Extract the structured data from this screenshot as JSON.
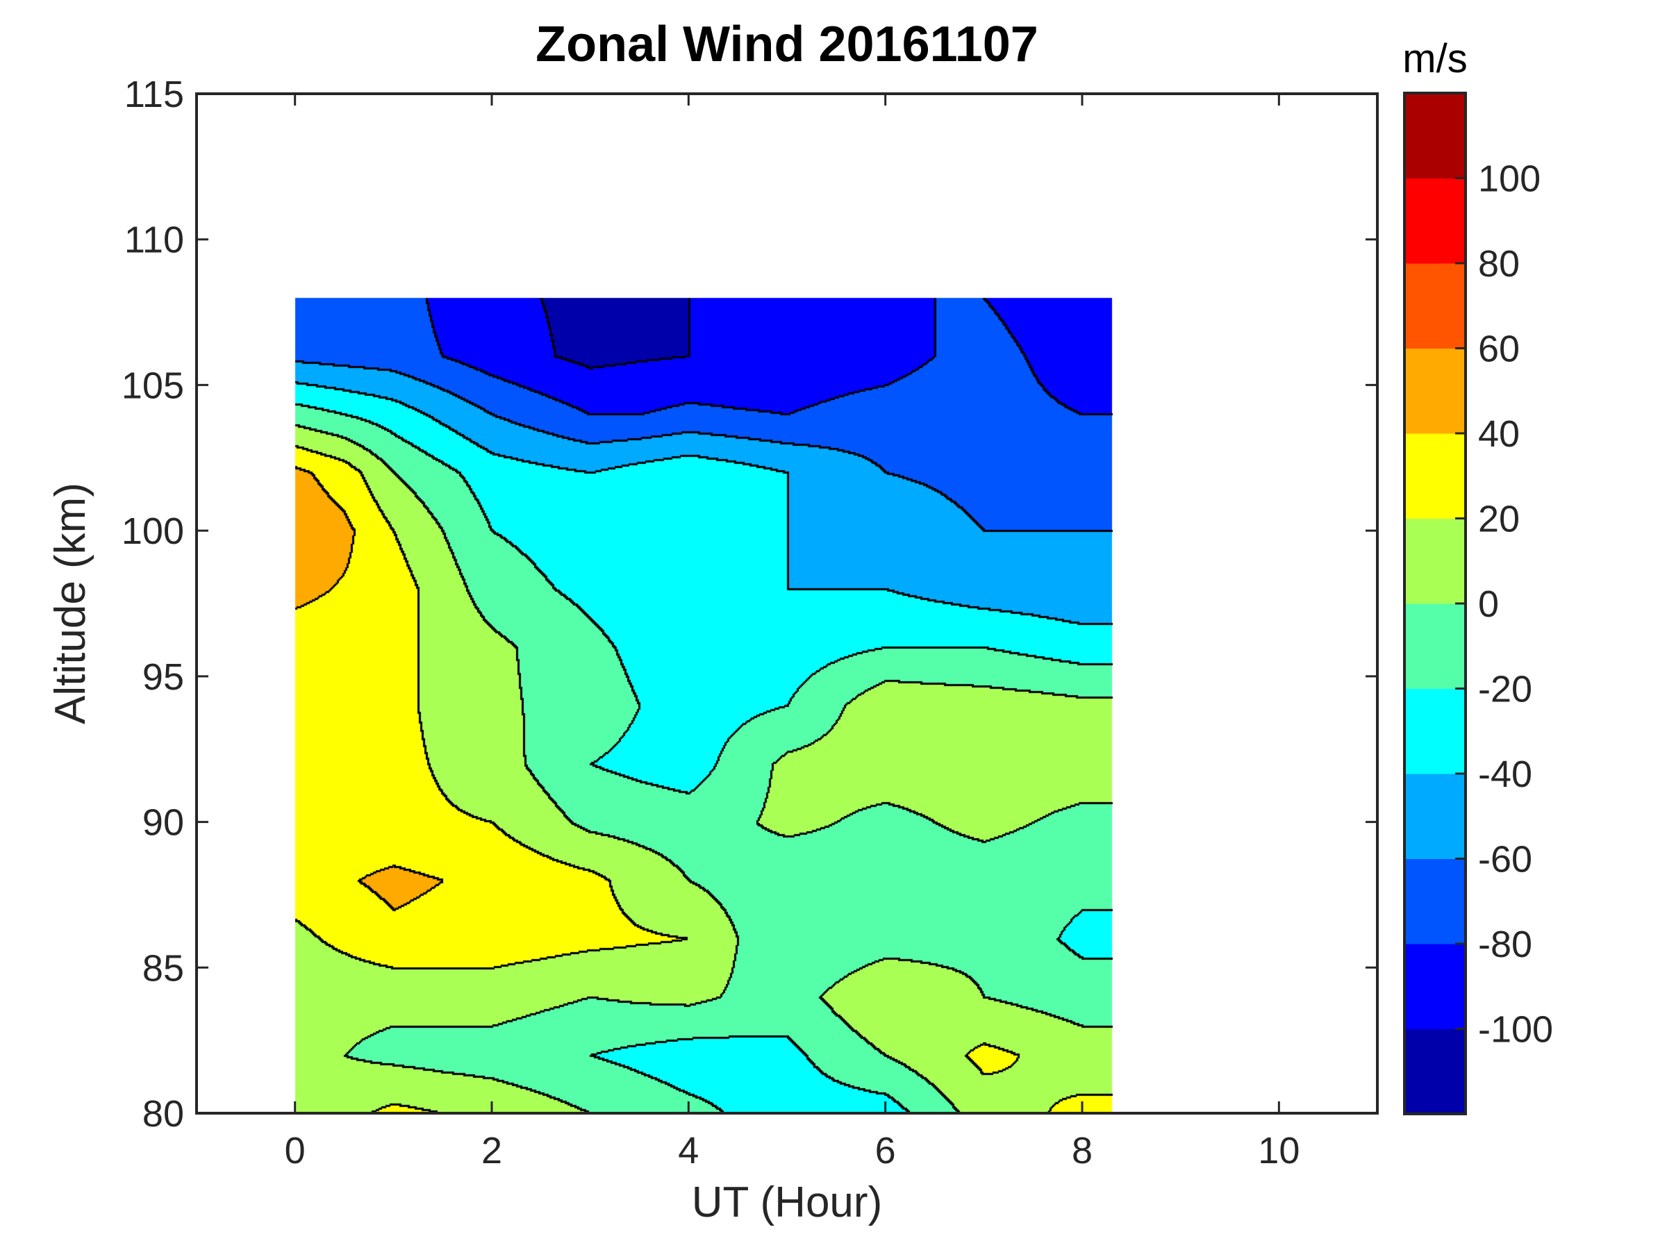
{
  "chart_data": {
    "type": "heatmap",
    "subtype": "filled-contour",
    "title": "Zonal Wind 20161107",
    "xlabel": "UT (Hour)",
    "ylabel": "Altitude (km)",
    "xlim": [
      -1,
      11
    ],
    "ylim": [
      80,
      115
    ],
    "xticks": [
      0,
      2,
      4,
      6,
      8,
      10
    ],
    "yticks": [
      80,
      85,
      90,
      95,
      100,
      105,
      110,
      115
    ],
    "colorbar": {
      "label": "m/s",
      "range": [
        -120,
        120
      ],
      "ticks": [
        -100,
        -80,
        -60,
        -40,
        -20,
        0,
        20,
        40,
        60,
        80,
        100
      ],
      "levels": [
        -120,
        -100,
        -80,
        -60,
        -40,
        -20,
        0,
        20,
        40,
        60,
        80,
        100,
        120
      ],
      "colors": [
        "#0000AA",
        "#0000FF",
        "#0055FF",
        "#00AAFF",
        "#00FFFF",
        "#55FFAA",
        "#AAFF55",
        "#FFFF00",
        "#FFAA00",
        "#FF5500",
        "#FF0000",
        "#AA0000"
      ]
    },
    "data_extent": {
      "x": [
        0,
        8.3
      ],
      "y": [
        80,
        108
      ]
    },
    "x": [
      0,
      0.5,
      1,
      1.5,
      2,
      2.5,
      3,
      3.5,
      4,
      4.5,
      5,
      5.5,
      6,
      6.5,
      7,
      7.5,
      8,
      8.5
    ],
    "y": [
      80,
      82,
      84,
      86,
      88,
      90,
      92,
      94,
      96,
      98,
      100,
      102,
      104,
      106,
      108
    ],
    "z": [
      [
        5,
        15,
        25,
        20,
        15,
        8,
        0,
        -8,
        -15,
        -22,
        -30,
        -30,
        -30,
        -10,
        10,
        18,
        25,
        25
      ],
      [
        5,
        0,
        -5,
        -8,
        -10,
        -15,
        -20,
        -25,
        -30,
        -28,
        -25,
        -12,
        0,
        12,
        25,
        18,
        10,
        10
      ],
      [
        5,
        5,
        5,
        8,
        10,
        5,
        0,
        3,
        5,
        -3,
        -10,
        5,
        20,
        10,
        0,
        -5,
        -10,
        -10
      ],
      [
        15,
        25,
        35,
        32,
        30,
        28,
        25,
        22,
        20,
        0,
        -20,
        -15,
        -10,
        -8,
        -5,
        -15,
        -25,
        -25
      ],
      [
        30,
        38,
        45,
        40,
        35,
        30,
        25,
        12,
        0,
        -8,
        -15,
        -12,
        -10,
        -10,
        -10,
        -12,
        -15,
        -15
      ],
      [
        30,
        28,
        25,
        22,
        20,
        8,
        -5,
        -8,
        -10,
        -3,
        5,
        0,
        -5,
        0,
        5,
        0,
        -5,
        -5
      ],
      [
        30,
        28,
        25,
        18,
        10,
        -5,
        -20,
        -25,
        -30,
        -12,
        5,
        8,
        10,
        10,
        10,
        10,
        10,
        10
      ],
      [
        25,
        25,
        25,
        15,
        5,
        -3,
        -10,
        -20,
        -30,
        -25,
        -20,
        -3,
        15,
        12,
        10,
        8,
        5,
        5
      ],
      [
        30,
        28,
        25,
        15,
        5,
        -5,
        -15,
        -25,
        -35,
        -32,
        -30,
        -25,
        -20,
        -20,
        -20,
        -25,
        -30,
        -30
      ],
      [
        45,
        38,
        30,
        10,
        -10,
        -18,
        -25,
        -32,
        -40,
        -40,
        -40,
        -40,
        -40,
        -45,
        -50,
        -52,
        -55,
        -55
      ],
      [
        55,
        45,
        20,
        0,
        -20,
        -25,
        -30,
        -30,
        -30,
        -35,
        -40,
        -45,
        -50,
        -55,
        -60,
        -60,
        -60,
        -60
      ],
      [
        45,
        30,
        0,
        -15,
        -30,
        -35,
        -40,
        -32,
        -25,
        -32,
        -40,
        -50,
        -60,
        -62,
        -65,
        -68,
        -70,
        -70
      ],
      [
        -10,
        -20,
        -30,
        -45,
        -60,
        -70,
        -80,
        -80,
        -75,
        -78,
        -80,
        -75,
        -70,
        -65,
        -65,
        -75,
        -80,
        -80
      ],
      [
        -65,
        -68,
        -70,
        -80,
        -90,
        -98,
        -105,
        -102,
        -100,
        -98,
        -95,
        -92,
        -90,
        -80,
        -70,
        -82,
        -95,
        -95
      ],
      [
        -80,
        -75,
        -70,
        -85,
        -95,
        -100,
        -105,
        -105,
        -100,
        -100,
        -95,
        -95,
        -90,
        -80,
        -80,
        -90,
        -100,
        -100
      ]
    ]
  }
}
